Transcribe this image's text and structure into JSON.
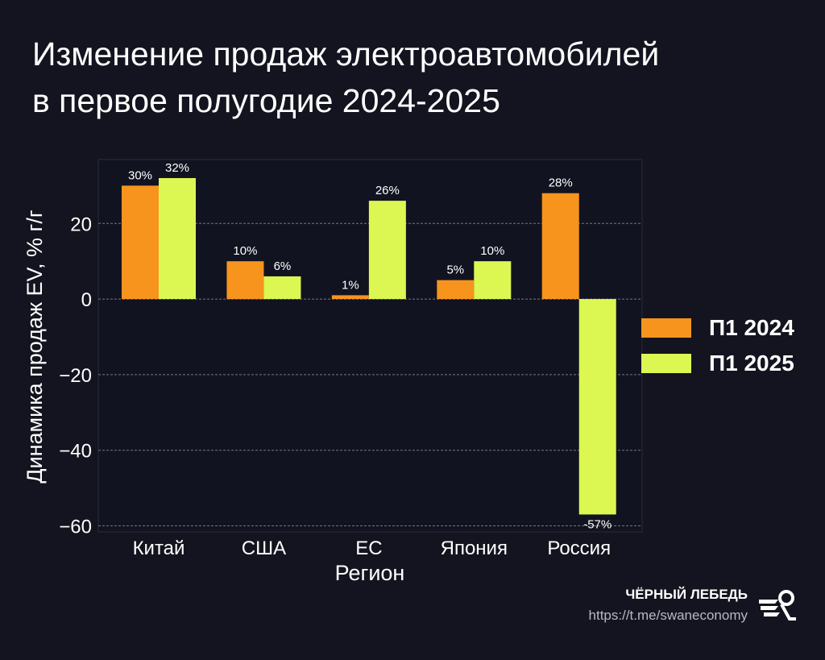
{
  "title_line1": "Изменение продаж электроавтомобилей",
  "title_line2": "в первое полугодие 2024-2025",
  "brand": {
    "name": "ЧЁРНЫЙ ЛЕБЕДЬ",
    "url": "https://t.me/swaneconomy"
  },
  "chart_data": {
    "type": "bar",
    "title": "Изменение продаж электроавтомобилей в первое полугодие 2024-2025",
    "xlabel": "Регион",
    "ylabel": "Динамика продаж EV, % г/г",
    "categories": [
      "Китай",
      "США",
      "ЕС",
      "Япония",
      "Россия"
    ],
    "series": [
      {
        "name": "П1 2024",
        "color": "#f7941d",
        "values": [
          30,
          10,
          1,
          5,
          28
        ],
        "labels": [
          "30%",
          "10%",
          "1%",
          "5%",
          "28%"
        ]
      },
      {
        "name": "П1 2025",
        "color": "#dcf752",
        "values": [
          32,
          6,
          26,
          10,
          -57
        ],
        "labels": [
          "32%",
          "6%",
          "26%",
          "10%",
          "-57%"
        ]
      }
    ],
    "yticks": [
      -60,
      -40,
      -20,
      0,
      20
    ],
    "ylim": [
      -61.6,
      36.9
    ],
    "grid": true,
    "legend": "right"
  }
}
